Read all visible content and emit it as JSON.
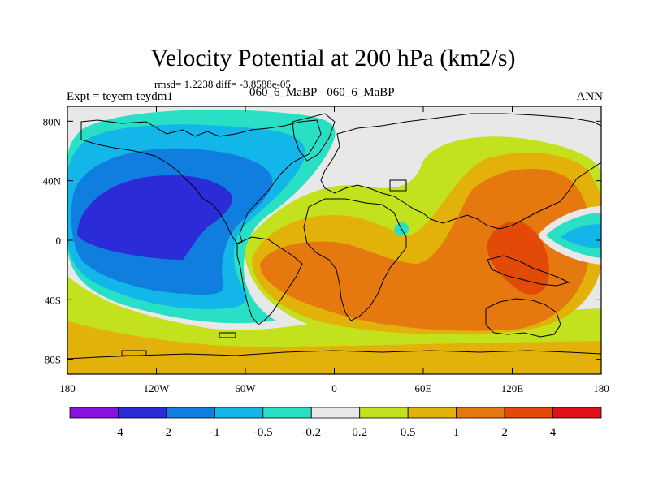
{
  "chart_data": {
    "type": "heatmap",
    "title": "Velocity Potential at 200 hPa (km2/s)",
    "stats_line": "rmsd= 1.2238 diff= -3.8588e-05",
    "left_label": "Expt = teyem-teydm1",
    "center_label": "060_6_MaBP - 060_6_MaBP",
    "right_label": "ANN",
    "x_ticks": [
      "180",
      "120W",
      "60W",
      "0",
      "60E",
      "120E",
      "180"
    ],
    "y_ticks": [
      "80N",
      "40N",
      "0",
      "40S",
      "80S"
    ],
    "xlim": [
      -180,
      180
    ],
    "ylim": [
      -90,
      90
    ],
    "colorbar_levels": [
      "-4",
      "-2",
      "-1",
      "-0.5",
      "-0.2",
      "0.2",
      "0.5",
      "1",
      "2",
      "4"
    ],
    "colorbar_colors": [
      "#8a10dd",
      "#2b2bd8",
      "#0f7ede",
      "#12b6e8",
      "#2ae0c4",
      "#e8e8e8",
      "#c3e21d",
      "#e2b20a",
      "#e67810",
      "#e34a08",
      "#e0101a"
    ]
  }
}
